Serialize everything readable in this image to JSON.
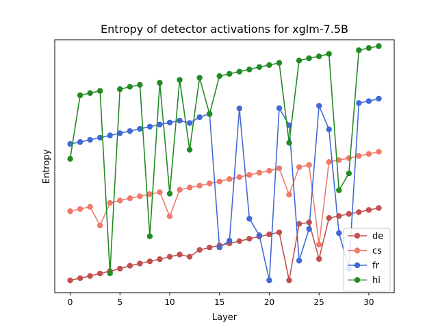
{
  "chart_data": {
    "type": "line",
    "title": "Entropy of detector activations for xglm-7.5B",
    "xlabel": "Layer",
    "ylabel": "Entropy",
    "xlim": [
      -1.55,
      32.55
    ],
    "xticks": [
      0,
      5,
      10,
      15,
      20,
      25,
      30
    ],
    "ylim": [
      -3.86,
      100
    ],
    "yticks_visible": false,
    "grid": false,
    "legend_position": "lower-right",
    "x": [
      0,
      1,
      2,
      3,
      4,
      5,
      6,
      7,
      8,
      9,
      10,
      11,
      12,
      13,
      14,
      15,
      16,
      17,
      18,
      19,
      20,
      21,
      22,
      23,
      24,
      25,
      26,
      27,
      28,
      29,
      30,
      31
    ],
    "series": [
      {
        "name": "de",
        "color": "#c1504f",
        "values": [
          1.2,
          2.1,
          3.0,
          4.0,
          5.0,
          6.0,
          7.2,
          8.1,
          9.0,
          9.9,
          10.9,
          11.8,
          10.9,
          13.7,
          14.7,
          15.5,
          16.4,
          17.3,
          18.3,
          19.2,
          20.1,
          20.9,
          1.2,
          24.4,
          25.0,
          10.0,
          26.8,
          27.6,
          28.5,
          29.2,
          30.1,
          30.9
        ]
      },
      {
        "name": "cs",
        "color": "#f07a6a",
        "values": [
          29.6,
          30.5,
          31.4,
          23.7,
          33.0,
          34.0,
          34.9,
          35.7,
          36.6,
          37.4,
          27.5,
          38.4,
          39.3,
          40.1,
          41.0,
          41.8,
          42.8,
          43.6,
          44.5,
          45.4,
          46.2,
          47.2,
          36.4,
          47.7,
          48.6,
          15.9,
          49.8,
          50.6,
          51.4,
          52.3,
          53.1,
          54.0
        ]
      },
      {
        "name": "fr",
        "color": "#4169d6",
        "values": [
          57.2,
          58.0,
          58.9,
          59.8,
          60.7,
          61.6,
          62.5,
          63.4,
          64.3,
          65.2,
          66.0,
          66.8,
          65.8,
          68.2,
          69.6,
          14.7,
          17.5,
          71.8,
          26.5,
          19.7,
          1.2,
          71.9,
          64.9,
          9.3,
          22.3,
          72.9,
          63.2,
          20.6,
          5.9,
          74.0,
          74.8,
          75.8
        ]
      },
      {
        "name": "hi",
        "color": "#228b22",
        "values": [
          51.1,
          77.2,
          78.1,
          79.0,
          4.1,
          79.7,
          80.7,
          81.5,
          19.3,
          82.3,
          36.8,
          83.5,
          54.8,
          84.4,
          69.5,
          85.1,
          86.0,
          86.9,
          87.8,
          88.8,
          89.6,
          90.5,
          57.7,
          91.5,
          92.4,
          93.2,
          94.2,
          38.2,
          45.1,
          95.7,
          96.6,
          97.4
        ]
      }
    ]
  }
}
